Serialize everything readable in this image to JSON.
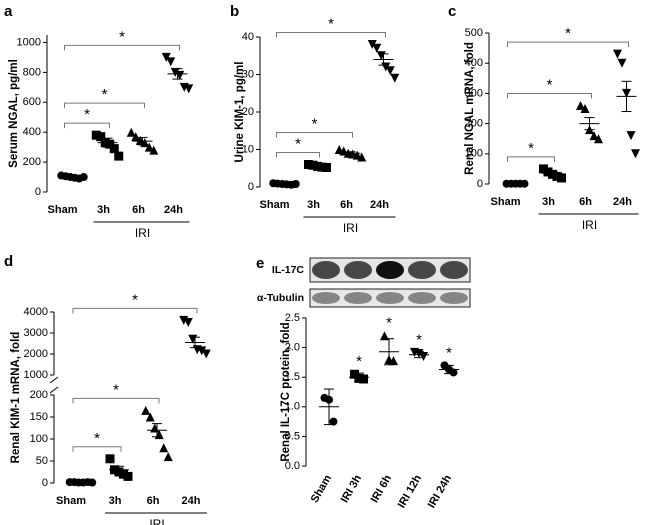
{
  "chart_data": [
    {
      "type": "dot",
      "panel_label": "a",
      "y_label": "Serum NGAL, pg/ml",
      "categories": [
        "Sham",
        "3h",
        "6h",
        "24h"
      ],
      "group_label": "IRI",
      "markers": [
        "circle",
        "square",
        "triangle",
        "triangle-down"
      ],
      "points": [
        [
          110,
          105,
          100,
          95,
          90,
          100
        ],
        [
          380,
          370,
          330,
          320,
          290,
          240
        ],
        [
          400,
          370,
          345,
          330,
          300,
          280
        ],
        [
          900,
          870,
          800,
          780,
          700,
          690
        ]
      ],
      "mean": [
        100,
        330,
        340,
        790
      ],
      "error": [
        5,
        30,
        25,
        35
      ],
      "significance": [
        "*",
        "*",
        "*"
      ],
      "ylim": [
        0,
        1050
      ],
      "yticks": [
        0,
        200,
        400,
        600,
        800,
        1000
      ]
    },
    {
      "type": "dot",
      "panel_label": "b",
      "y_label": "Urine KIM-1, pg/ml",
      "categories": [
        "Sham",
        "3h",
        "6h",
        "24h"
      ],
      "group_label": "IRI",
      "markers": [
        "circle",
        "square",
        "triangle",
        "triangle-down"
      ],
      "points": [
        [
          1,
          0.9,
          0.8,
          0.7,
          0.6,
          0.8
        ],
        [
          6,
          5.8,
          5.5,
          5.3,
          5.2
        ],
        [
          10,
          9.6,
          9,
          8.8,
          8.5,
          8
        ],
        [
          38,
          37,
          35,
          32,
          31,
          29
        ]
      ],
      "mean": [
        0.8,
        5.5,
        9,
        34
      ],
      "error": [
        0.1,
        0.3,
        0.4,
        1.5
      ],
      "significance": [
        "*",
        "*",
        "*"
      ],
      "ylim": [
        0,
        40
      ],
      "yticks": [
        0,
        10,
        20,
        30,
        40
      ]
    },
    {
      "type": "dot",
      "panel_label": "c",
      "y_label": "Renal NGAL mRNA, fold",
      "categories": [
        "Sham",
        "3h",
        "6h",
        "24h"
      ],
      "group_label": "IRI",
      "markers": [
        "circle",
        "square",
        "triangle",
        "triangle-down"
      ],
      "points": [
        [
          1,
          1,
          1,
          1,
          1
        ],
        [
          50,
          40,
          32,
          25,
          20
        ],
        [
          260,
          250,
          180,
          160,
          150
        ],
        [
          430,
          400,
          300,
          160,
          100
        ]
      ],
      "mean": [
        1,
        35,
        200,
        290
      ],
      "error": [
        0.5,
        6,
        20,
        50
      ],
      "significance": [
        "*",
        "*",
        "*"
      ],
      "ylim": [
        0,
        500
      ],
      "yticks": [
        0,
        100,
        200,
        300,
        400,
        500
      ]
    },
    {
      "type": "dot",
      "panel_label": "d",
      "y_label": "Renal KIM-1 mRNA, fold",
      "categories": [
        "Sham",
        "3h",
        "6h",
        "24h"
      ],
      "group_label": "IRI",
      "markers": [
        "circle",
        "square",
        "triangle",
        "triangle-down"
      ],
      "points": [
        [
          2,
          2,
          1,
          1,
          2,
          1
        ],
        [
          55,
          30,
          25,
          20,
          15
        ],
        [
          165,
          150,
          125,
          110,
          80,
          60
        ],
        [
          3600,
          3500,
          2700,
          2200,
          2150,
          2000
        ]
      ],
      "mean": [
        1.5,
        30,
        120,
        2550
      ],
      "error": [
        0.3,
        8,
        15,
        250
      ],
      "significance": [
        "*",
        "*",
        "*"
      ],
      "ylim": [
        0,
        4000
      ],
      "axis_break": [
        200,
        1000
      ],
      "yticks": [
        0,
        50,
        100,
        150,
        200,
        1000,
        2000,
        3000,
        4000
      ]
    },
    {
      "type": "dot",
      "panel_label": "e",
      "y_label": "Renal IL-17C protein, fold",
      "blot_labels": [
        "IL-17C",
        "α-Tubulin"
      ],
      "categories": [
        "Sham",
        "IRI 3h",
        "IRI 6h",
        "IRI 12h",
        "IRI 24h"
      ],
      "markers": [
        "circle",
        "square",
        "triangle",
        "triangle-down",
        "circle"
      ],
      "points": [
        [
          1.15,
          1.12,
          0.75
        ],
        [
          1.55,
          1.48,
          1.47
        ],
        [
          2.2,
          1.8,
          1.78
        ],
        [
          1.92,
          1.9,
          1.85
        ],
        [
          1.7,
          1.63,
          1.58
        ]
      ],
      "mean": [
        1.0,
        1.5,
        1.93,
        1.88,
        1.63
      ],
      "error": [
        0.3,
        0.07,
        0.22,
        0.05,
        0.07
      ],
      "significance": [
        null,
        "*",
        "*",
        "*",
        "*"
      ],
      "ylim": [
        0,
        2.5
      ],
      "yticks": [
        {
          "value": 0,
          "label": "0.0"
        },
        0.5,
        {
          "value": 1,
          "label": "1.0"
        },
        1.5,
        {
          "value": 2,
          "label": "2.0"
        },
        2.5
      ]
    }
  ]
}
